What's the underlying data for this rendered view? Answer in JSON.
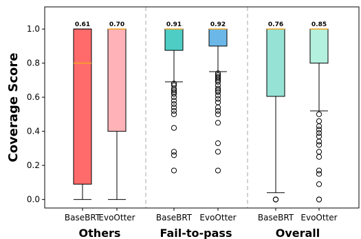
{
  "chart_data": {
    "type": "box",
    "title": "",
    "ylabel": "Coverage Score",
    "ylim": [
      -0.05,
      1.13
    ],
    "yticks": [
      0.0,
      0.2,
      0.4,
      0.6,
      0.8,
      1.0
    ],
    "ytick_labels": [
      "0.0",
      "0.2",
      "0.4",
      "0.6",
      "0.8",
      "1.0"
    ],
    "grid": false,
    "colors": {
      "median_line": "#f5a623",
      "divider": "#bbbbbb",
      "box_edge": "#000000"
    },
    "groups": [
      {
        "label": "Others",
        "boxes": [
          {
            "label": "BaseBRT",
            "color": "#ff6b6b",
            "median_label": "0.61",
            "whisker_low": 0.0,
            "q1": 0.09,
            "median": 0.8,
            "q3": 1.0,
            "whisker_high": 1.0,
            "outliers": []
          },
          {
            "label": "EvoOtter",
            "color": "#ffb3b8",
            "median_label": "0.70",
            "whisker_low": 0.0,
            "q1": 0.4,
            "median": 1.0,
            "q3": 1.0,
            "whisker_high": 1.0,
            "outliers": []
          }
        ]
      },
      {
        "label": "Fail-to-pass",
        "boxes": [
          {
            "label": "BaseBRT",
            "color": "#4ecdc4",
            "median_label": "0.91",
            "whisker_low": 0.69,
            "q1": 0.875,
            "median": 1.0,
            "q3": 1.0,
            "whisker_high": 1.0,
            "outliers": [
              0.17,
              0.26,
              0.28,
              0.42,
              0.5,
              0.52,
              0.54,
              0.56,
              0.58,
              0.6,
              0.62,
              0.63,
              0.64,
              0.65,
              0.67,
              0.68
            ]
          },
          {
            "label": "EvoOtter",
            "color": "#6bb8e8",
            "median_label": "0.92",
            "whisker_low": 0.75,
            "q1": 0.9,
            "median": 1.0,
            "q3": 1.0,
            "whisker_high": 1.0,
            "outliers": [
              0.17,
              0.28,
              0.33,
              0.45,
              0.5,
              0.52,
              0.54,
              0.57,
              0.59,
              0.61,
              0.63,
              0.64,
              0.65,
              0.67,
              0.69,
              0.7,
              0.71,
              0.72,
              0.73,
              0.74
            ]
          }
        ]
      },
      {
        "label": "Overall",
        "boxes": [
          {
            "label": "BaseBRT",
            "color": "#96e2d4",
            "median_label": "0.76",
            "whisker_low": 0.04,
            "q1": 0.605,
            "median": 1.0,
            "q3": 1.0,
            "whisker_high": 1.0,
            "outliers": [
              0.0,
              0.0,
              0.0,
              0.0
            ]
          },
          {
            "label": "EvoOtter",
            "color": "#b4f0de",
            "median_label": "0.85",
            "whisker_low": 0.52,
            "q1": 0.8,
            "median": 1.0,
            "q3": 1.0,
            "whisker_high": 1.0,
            "outliers": [
              0.0,
              0.0,
              0.09,
              0.15,
              0.17,
              0.25,
              0.28,
              0.32,
              0.34,
              0.37,
              0.39,
              0.41,
              0.43,
              0.46,
              0.5
            ]
          }
        ]
      }
    ]
  }
}
